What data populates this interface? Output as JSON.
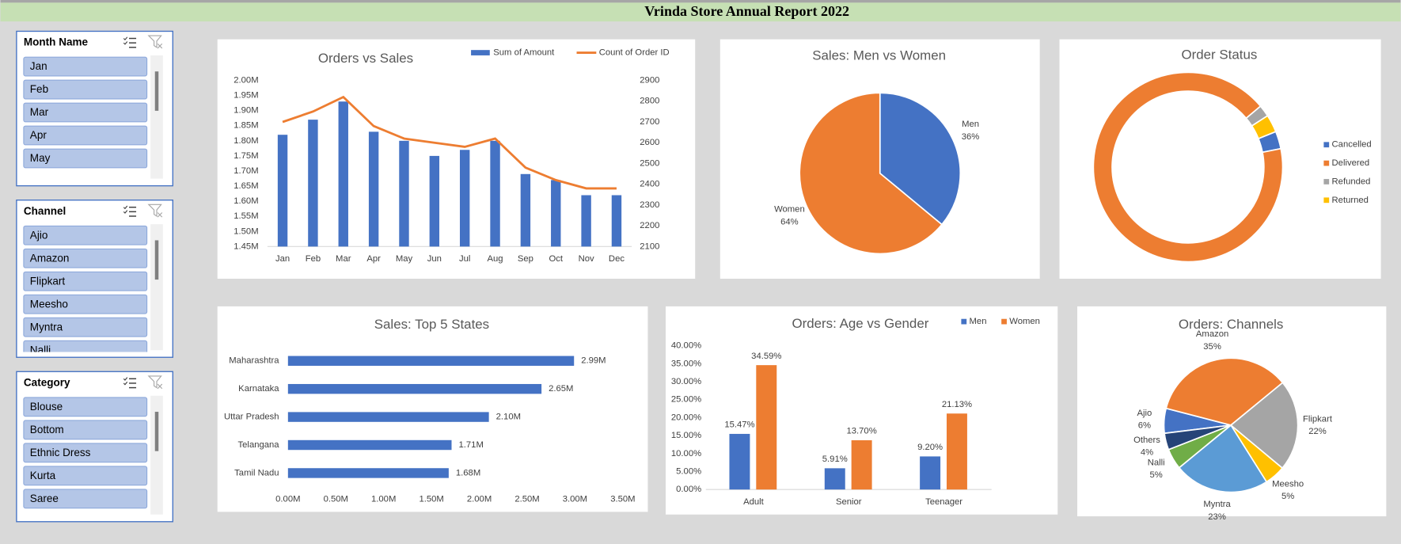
{
  "header": {
    "title": "Vrinda Store Annual Report 2022"
  },
  "slicers": [
    {
      "title": "Month Name",
      "items": [
        "Jan",
        "Feb",
        "Mar",
        "Apr",
        "May"
      ]
    },
    {
      "title": "Channel",
      "items": [
        "Ajio",
        "Amazon",
        "Flipkart",
        "Meesho",
        "Myntra",
        "Nalli"
      ]
    },
    {
      "title": "Category",
      "items": [
        "Blouse",
        "Bottom",
        "Ethnic Dress",
        "Kurta",
        "Saree"
      ]
    }
  ],
  "chart_data": [
    {
      "type": "combo",
      "title": "Orders vs Sales",
      "categories": [
        "Jan",
        "Feb",
        "Mar",
        "Apr",
        "May",
        "Jun",
        "Jul",
        "Aug",
        "Sep",
        "Oct",
        "Nov",
        "Dec"
      ],
      "series": [
        {
          "name": "Sum of Amount",
          "type": "bar",
          "color": "#4472c4",
          "values": [
            1.82,
            1.87,
            1.93,
            1.83,
            1.8,
            1.75,
            1.77,
            1.8,
            1.69,
            1.67,
            1.62,
            1.62
          ]
        },
        {
          "name": "Count of Order ID",
          "type": "line",
          "axis": "y2",
          "color": "#ed7d31",
          "values": [
            2700,
            2750,
            2820,
            2680,
            2620,
            2600,
            2580,
            2620,
            2480,
            2420,
            2380,
            2380
          ]
        }
      ],
      "ylim": [
        1.45,
        2.0
      ],
      "yticks": [
        {
          "value": 1.45,
          "label": "1.45M"
        },
        {
          "value": 1.5,
          "label": "1.50M"
        },
        {
          "value": 1.55,
          "label": "1.55M"
        },
        {
          "value": 1.6,
          "label": "1.60M"
        },
        {
          "value": 1.65,
          "label": "1.65M"
        },
        {
          "value": 1.7,
          "label": "1.70M"
        },
        {
          "value": 1.75,
          "label": "1.75M"
        },
        {
          "value": 1.8,
          "label": "1.80M"
        },
        {
          "value": 1.85,
          "label": "1.85M"
        },
        {
          "value": 1.9,
          "label": "1.90M"
        },
        {
          "value": 1.95,
          "label": "1.95M"
        },
        {
          "value": 2.0,
          "label": "2.00M"
        }
      ],
      "y2lim": [
        2100,
        2900
      ],
      "y2ticks": [
        2100,
        2200,
        2300,
        2400,
        2500,
        2600,
        2700,
        2800,
        2900
      ],
      "legend": "top"
    },
    {
      "type": "pie",
      "title": "Sales: Men vs Women",
      "categories": [
        "Men",
        "Women"
      ],
      "values": [
        36,
        64
      ],
      "value_labels": [
        "36%",
        "64%"
      ],
      "colors": [
        "#4472c4",
        "#ed7d31"
      ]
    },
    {
      "type": "donut",
      "title": "Order Status",
      "categories": [
        "Cancelled",
        "Delivered",
        "Refunded",
        "Returned"
      ],
      "values": [
        3,
        92,
        2,
        3
      ],
      "colors": [
        "#4472c4",
        "#ed7d31",
        "#a5a5a5",
        "#ffc000"
      ],
      "legend": "right"
    },
    {
      "type": "hbar",
      "title": "Sales: Top 5 States",
      "categories": [
        "Maharashtra",
        "Karnataka",
        "Uttar Pradesh",
        "Telangana",
        "Tamil Nadu"
      ],
      "values": [
        2.99,
        2.65,
        2.1,
        1.71,
        1.68
      ],
      "value_labels": [
        "2.99M",
        "2.65M",
        "2.10M",
        "1.71M",
        "1.68M"
      ],
      "color": "#4472c4",
      "xlim": [
        0,
        3.5
      ],
      "xticks": [
        {
          "value": 0,
          "label": "0.00M"
        },
        {
          "value": 0.5,
          "label": "0.50M"
        },
        {
          "value": 1.0,
          "label": "1.00M"
        },
        {
          "value": 1.5,
          "label": "1.50M"
        },
        {
          "value": 2.0,
          "label": "2.00M"
        },
        {
          "value": 2.5,
          "label": "2.50M"
        },
        {
          "value": 3.0,
          "label": "3.00M"
        },
        {
          "value": 3.5,
          "label": "3.50M"
        }
      ]
    },
    {
      "type": "bar",
      "title": "Orders: Age vs Gender",
      "categories": [
        "Adult",
        "Senior",
        "Teenager"
      ],
      "series": [
        {
          "name": "Men",
          "color": "#4472c4",
          "values": [
            15.47,
            5.91,
            9.2
          ],
          "value_labels": [
            "15.47%",
            "5.91%",
            "9.20%"
          ]
        },
        {
          "name": "Women",
          "color": "#ed7d31",
          "values": [
            34.59,
            13.7,
            21.13
          ],
          "value_labels": [
            "34.59%",
            "13.70%",
            "21.13%"
          ]
        }
      ],
      "ylim": [
        0,
        40
      ],
      "yticks": [
        {
          "value": 0,
          "label": "0.00%"
        },
        {
          "value": 5,
          "label": "5.00%"
        },
        {
          "value": 10,
          "label": "10.00%"
        },
        {
          "value": 15,
          "label": "15.00%"
        },
        {
          "value": 20,
          "label": "20.00%"
        },
        {
          "value": 25,
          "label": "25.00%"
        },
        {
          "value": 30,
          "label": "30.00%"
        },
        {
          "value": 35,
          "label": "35.00%"
        },
        {
          "value": 40,
          "label": "40.00%"
        }
      ],
      "legend": "top"
    },
    {
      "type": "pie",
      "title": "Orders: Channels",
      "categories": [
        "Ajio",
        "Amazon",
        "Flipkart",
        "Meesho",
        "Myntra",
        "Nalli",
        "Others"
      ],
      "values": [
        6,
        35,
        22,
        5,
        23,
        5,
        4
      ],
      "value_labels": [
        "6%",
        "35%",
        "22%",
        "5%",
        "23%",
        "5%",
        "4%"
      ],
      "colors": [
        "#4472c4",
        "#ed7d31",
        "#a5a5a5",
        "#ffc000",
        "#5b9bd5",
        "#70ad47",
        "#264478"
      ]
    }
  ]
}
